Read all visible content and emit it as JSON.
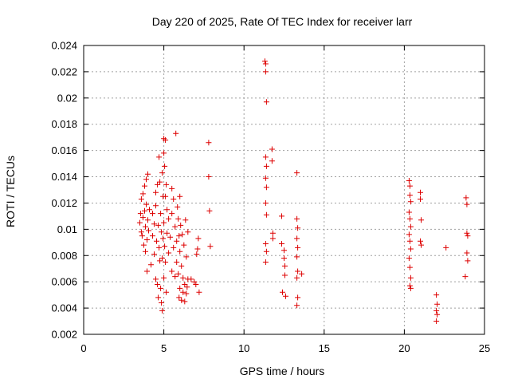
{
  "chart_data": {
    "type": "scatter",
    "title": "Day 220 of 2025, Rate Of TEC Index for receiver larr",
    "xlabel": "GPS time / hours",
    "ylabel": "ROTI / TECUs",
    "xlim": [
      0,
      25
    ],
    "ylim": [
      0.002,
      0.024
    ],
    "x_ticks": [
      0,
      5,
      10,
      15,
      20,
      25
    ],
    "x_tick_labels": [
      "0",
      "5",
      "10",
      "15",
      "20",
      "25"
    ],
    "y_ticks": [
      0.002,
      0.004,
      0.006,
      0.008,
      0.01,
      0.012,
      0.014,
      0.016,
      0.018,
      0.02,
      0.022,
      0.024
    ],
    "y_tick_labels": [
      "0.002",
      "0.004",
      "0.006",
      "0.008",
      "0.01",
      "0.012",
      "0.014",
      "0.016",
      "0.018",
      "0.02",
      "0.022",
      "0.024"
    ],
    "grid": true,
    "marker": "plus",
    "marker_color": "#dd0000",
    "points": [
      [
        3.5,
        0.0105
      ],
      [
        3.55,
        0.0112
      ],
      [
        3.6,
        0.0098
      ],
      [
        3.6,
        0.0123
      ],
      [
        3.65,
        0.0095
      ],
      [
        3.7,
        0.0109
      ],
      [
        3.7,
        0.0127
      ],
      [
        3.75,
        0.0088
      ],
      [
        3.8,
        0.0114
      ],
      [
        3.8,
        0.0133
      ],
      [
        3.85,
        0.0102
      ],
      [
        3.85,
        0.0083
      ],
      [
        3.9,
        0.0138
      ],
      [
        3.9,
        0.0119
      ],
      [
        3.95,
        0.0092
      ],
      [
        3.95,
        0.0068
      ],
      [
        4.0,
        0.0142
      ],
      [
        4.0,
        0.0107
      ],
      [
        4.05,
        0.0099
      ],
      [
        4.1,
        0.0115
      ],
      [
        4.2,
        0.0073
      ],
      [
        4.3,
        0.0095
      ],
      [
        4.3,
        0.0112
      ],
      [
        4.4,
        0.0104
      ],
      [
        4.4,
        0.0081
      ],
      [
        4.5,
        0.0118
      ],
      [
        4.5,
        0.0128
      ],
      [
        4.5,
        0.0062
      ],
      [
        4.55,
        0.0091
      ],
      [
        4.6,
        0.0134
      ],
      [
        4.6,
        0.0058
      ],
      [
        4.65,
        0.0103
      ],
      [
        4.65,
        0.0048
      ],
      [
        4.7,
        0.0155
      ],
      [
        4.7,
        0.0086
      ],
      [
        4.75,
        0.0136
      ],
      [
        4.75,
        0.0076
      ],
      [
        4.8,
        0.0112
      ],
      [
        4.8,
        0.0055
      ],
      [
        4.85,
        0.0098
      ],
      [
        4.85,
        0.0044
      ],
      [
        4.9,
        0.0143
      ],
      [
        4.9,
        0.0078
      ],
      [
        4.9,
        0.0038
      ],
      [
        4.95,
        0.0125
      ],
      [
        4.95,
        0.0093
      ],
      [
        5.0,
        0.0169
      ],
      [
        5.0,
        0.0158
      ],
      [
        5.0,
        0.0105
      ],
      [
        5.0,
        0.0063
      ],
      [
        5.05,
        0.0148
      ],
      [
        5.05,
        0.0087
      ],
      [
        5.1,
        0.0168
      ],
      [
        5.1,
        0.0125
      ],
      [
        5.1,
        0.0075
      ],
      [
        5.15,
        0.0134
      ],
      [
        5.15,
        0.0052
      ],
      [
        5.2,
        0.0115
      ],
      [
        5.2,
        0.0097
      ],
      [
        5.3,
        0.0108
      ],
      [
        5.3,
        0.0082
      ],
      [
        5.4,
        0.0094
      ],
      [
        5.5,
        0.0131
      ],
      [
        5.5,
        0.0112
      ],
      [
        5.5,
        0.0068
      ],
      [
        5.6,
        0.0123
      ],
      [
        5.6,
        0.0086
      ],
      [
        5.7,
        0.0102
      ],
      [
        5.7,
        0.0064
      ],
      [
        5.75,
        0.0173
      ],
      [
        5.8,
        0.0091
      ],
      [
        5.8,
        0.0075
      ],
      [
        5.85,
        0.0117
      ],
      [
        5.9,
        0.0108
      ],
      [
        5.9,
        0.0066
      ],
      [
        5.95,
        0.0095
      ],
      [
        5.95,
        0.0048
      ],
      [
        6.0,
        0.0125
      ],
      [
        6.0,
        0.0083
      ],
      [
        6.0,
        0.0055
      ],
      [
        6.05,
        0.0103
      ],
      [
        6.1,
        0.0072
      ],
      [
        6.1,
        0.0046
      ],
      [
        6.15,
        0.0096
      ],
      [
        6.2,
        0.0063
      ],
      [
        6.2,
        0.0052
      ],
      [
        6.25,
        0.0088
      ],
      [
        6.3,
        0.0058
      ],
      [
        6.3,
        0.0045
      ],
      [
        6.35,
        0.0107
      ],
      [
        6.4,
        0.0079
      ],
      [
        6.4,
        0.0051
      ],
      [
        6.45,
        0.0056
      ],
      [
        6.5,
        0.0098
      ],
      [
        6.5,
        0.0062
      ],
      [
        6.7,
        0.0062
      ],
      [
        6.9,
        0.006
      ],
      [
        7.0,
        0.0058
      ],
      [
        7.05,
        0.0081
      ],
      [
        7.1,
        0.0085
      ],
      [
        7.15,
        0.0093
      ],
      [
        7.2,
        0.0052
      ],
      [
        7.8,
        0.0166
      ],
      [
        7.8,
        0.014
      ],
      [
        7.85,
        0.0114
      ],
      [
        7.9,
        0.0087
      ],
      [
        11.3,
        0.0228
      ],
      [
        11.35,
        0.0226
      ],
      [
        11.35,
        0.022
      ],
      [
        11.4,
        0.0197
      ],
      [
        11.35,
        0.0155
      ],
      [
        11.4,
        0.0148
      ],
      [
        11.35,
        0.0139
      ],
      [
        11.4,
        0.0132
      ],
      [
        11.35,
        0.012
      ],
      [
        11.4,
        0.0111
      ],
      [
        11.35,
        0.0089
      ],
      [
        11.4,
        0.0083
      ],
      [
        11.35,
        0.0075
      ],
      [
        11.75,
        0.0161
      ],
      [
        11.75,
        0.0152
      ],
      [
        11.8,
        0.0097
      ],
      [
        11.8,
        0.0093
      ],
      [
        12.35,
        0.011
      ],
      [
        12.35,
        0.0089
      ],
      [
        12.4,
        0.0052
      ],
      [
        12.5,
        0.0084
      ],
      [
        12.5,
        0.0078
      ],
      [
        12.55,
        0.0072
      ],
      [
        12.55,
        0.0065
      ],
      [
        12.6,
        0.0049
      ],
      [
        13.3,
        0.0143
      ],
      [
        13.3,
        0.0108
      ],
      [
        13.35,
        0.0101
      ],
      [
        13.3,
        0.0093
      ],
      [
        13.35,
        0.0086
      ],
      [
        13.3,
        0.0079
      ],
      [
        13.35,
        0.0068
      ],
      [
        13.3,
        0.0063
      ],
      [
        13.35,
        0.0048
      ],
      [
        13.3,
        0.0042
      ],
      [
        13.6,
        0.0066
      ],
      [
        20.3,
        0.0137
      ],
      [
        20.35,
        0.0133
      ],
      [
        20.35,
        0.0126
      ],
      [
        20.4,
        0.0121
      ],
      [
        20.3,
        0.0113
      ],
      [
        20.35,
        0.0108
      ],
      [
        20.4,
        0.0102
      ],
      [
        20.3,
        0.0096
      ],
      [
        20.35,
        0.0091
      ],
      [
        20.4,
        0.0085
      ],
      [
        20.3,
        0.0078
      ],
      [
        20.35,
        0.0071
      ],
      [
        20.4,
        0.0063
      ],
      [
        20.35,
        0.0057
      ],
      [
        20.4,
        0.0055
      ],
      [
        21.0,
        0.0128
      ],
      [
        21.0,
        0.0123
      ],
      [
        21.05,
        0.0107
      ],
      [
        21.0,
        0.0091
      ],
      [
        21.05,
        0.0088
      ],
      [
        22.0,
        0.005
      ],
      [
        22.05,
        0.0043
      ],
      [
        22.0,
        0.0038
      ],
      [
        22.05,
        0.0035
      ],
      [
        22.0,
        0.003
      ],
      [
        22.6,
        0.0086
      ],
      [
        23.8,
        0.0064
      ],
      [
        23.85,
        0.0124
      ],
      [
        23.9,
        0.0119
      ],
      [
        23.9,
        0.0097
      ],
      [
        23.95,
        0.0095
      ],
      [
        23.9,
        0.0082
      ],
      [
        23.95,
        0.0076
      ]
    ]
  }
}
